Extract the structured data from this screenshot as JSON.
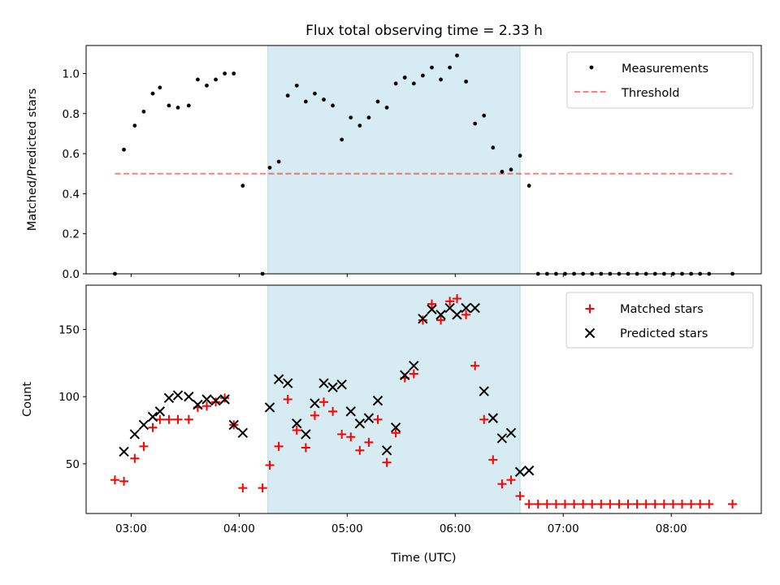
{
  "title": "Flux total observing time = 2.33 h",
  "colors": {
    "shade": "#add8e6",
    "threshold": "#ff0000",
    "matched": "#ff0000",
    "predicted": "#000000",
    "measurement": "#000000"
  },
  "chart_data": [
    {
      "type": "scatter",
      "ylabel": "Matched/Predicted stars",
      "ylim": [
        0,
        1.14
      ],
      "yticks": [
        "0.0",
        "0.2",
        "0.4",
        "0.6",
        "0.8",
        "1.0"
      ],
      "shaded_region": [
        "04:16",
        "06:36"
      ],
      "legend": {
        "placement": "top-right",
        "entries": [
          "Measurements",
          "Threshold"
        ]
      },
      "threshold": {
        "name": "Threshold",
        "value": 0.5,
        "x_range": [
          "02:51",
          "08:34"
        ],
        "style": "dashed"
      },
      "series": [
        {
          "name": "Measurements",
          "marker": "dot",
          "x": [
            "02:51",
            "02:56",
            "03:02",
            "03:07",
            "03:12",
            "03:16",
            "03:21",
            "03:26",
            "03:32",
            "03:37",
            "03:42",
            "03:47",
            "03:52",
            "03:57",
            "04:02",
            "04:13",
            "04:17",
            "04:22",
            "04:27",
            "04:32",
            "04:37",
            "04:42",
            "04:47",
            "04:52",
            "04:57",
            "05:02",
            "05:07",
            "05:12",
            "05:17",
            "05:22",
            "05:27",
            "05:32",
            "05:37",
            "05:42",
            "05:47",
            "05:52",
            "05:57",
            "06:01",
            "06:06",
            "06:11",
            "06:16",
            "06:21",
            "06:26",
            "06:31",
            "06:36",
            "06:41",
            "06:46",
            "06:51",
            "06:56",
            "07:01",
            "07:06",
            "07:11",
            "07:16",
            "07:21",
            "07:26",
            "07:31",
            "07:36",
            "07:41",
            "07:46",
            "07:51",
            "07:56",
            "08:01",
            "08:06",
            "08:11",
            "08:16",
            "08:21",
            "08:34"
          ],
          "y": [
            0.0,
            0.62,
            0.74,
            0.81,
            0.9,
            0.93,
            0.84,
            0.83,
            0.84,
            0.97,
            0.94,
            0.97,
            1.0,
            1.0,
            0.44,
            0.0,
            0.53,
            0.56,
            0.89,
            0.94,
            0.86,
            0.9,
            0.87,
            0.84,
            0.67,
            0.78,
            0.74,
            0.78,
            0.86,
            0.83,
            0.95,
            0.98,
            0.95,
            0.99,
            1.03,
            0.97,
            1.03,
            1.09,
            0.96,
            0.75,
            0.79,
            0.63,
            0.51,
            0.52,
            0.59,
            0.44,
            0.0,
            0.0,
            0.0,
            0.0,
            0.0,
            0.0,
            0.0,
            0.0,
            0.0,
            0.0,
            0.0,
            0.0,
            0.0,
            0.0,
            0.0,
            0.0,
            0.0,
            0.0,
            0.0,
            0.0,
            0.0
          ]
        }
      ]
    },
    {
      "type": "scatter",
      "xlabel": "Time (UTC)",
      "ylabel": "Count",
      "ylim": [
        13,
        183
      ],
      "yticks": [
        "50",
        "100",
        "150"
      ],
      "xticks": [
        "03:00",
        "04:00",
        "05:00",
        "06:00",
        "07:00",
        "08:00"
      ],
      "legend": {
        "placement": "top-right",
        "entries": [
          "Matched stars",
          "Predicted stars"
        ]
      },
      "series": [
        {
          "name": "Matched stars",
          "marker": "plus",
          "x": [
            "02:51",
            "02:56",
            "03:02",
            "03:07",
            "03:12",
            "03:16",
            "03:21",
            "03:26",
            "03:32",
            "03:37",
            "03:42",
            "03:47",
            "03:52",
            "03:57",
            "04:02",
            "04:13",
            "04:17",
            "04:22",
            "04:27",
            "04:32",
            "04:37",
            "04:42",
            "04:47",
            "04:52",
            "04:57",
            "05:02",
            "05:07",
            "05:12",
            "05:17",
            "05:22",
            "05:27",
            "05:32",
            "05:37",
            "05:42",
            "05:47",
            "05:52",
            "05:57",
            "06:01",
            "06:06",
            "06:11",
            "06:16",
            "06:21",
            "06:26",
            "06:31",
            "06:36",
            "06:41",
            "06:46",
            "06:51",
            "06:56",
            "07:01",
            "07:06",
            "07:11",
            "07:16",
            "07:21",
            "07:26",
            "07:31",
            "07:36",
            "07:41",
            "07:46",
            "07:51",
            "07:56",
            "08:01",
            "08:06",
            "08:11",
            "08:16",
            "08:21",
            "08:34"
          ],
          "y": [
            38,
            37,
            54,
            63,
            77,
            83,
            83,
            83,
            83,
            92,
            93,
            96,
            99,
            79,
            32,
            32,
            49,
            63,
            98,
            75,
            62,
            86,
            96,
            89,
            72,
            70,
            60,
            66,
            83,
            51,
            73,
            114,
            117,
            157,
            169,
            157,
            171,
            173,
            161,
            123,
            83,
            53,
            35,
            38,
            26,
            20,
            20,
            20,
            20,
            20,
            20,
            20,
            20,
            20,
            20,
            20,
            20,
            20,
            20,
            20,
            20,
            20,
            20,
            20,
            20,
            20,
            20
          ]
        },
        {
          "name": "Predicted stars",
          "marker": "x",
          "x": [
            "02:56",
            "03:02",
            "03:07",
            "03:12",
            "03:16",
            "03:21",
            "03:26",
            "03:32",
            "03:37",
            "03:42",
            "03:47",
            "03:52",
            "03:57",
            "04:02",
            "04:17",
            "04:22",
            "04:27",
            "04:32",
            "04:37",
            "04:42",
            "04:47",
            "04:52",
            "04:57",
            "05:02",
            "05:07",
            "05:12",
            "05:17",
            "05:22",
            "05:27",
            "05:32",
            "05:37",
            "05:42",
            "05:47",
            "05:52",
            "05:57",
            "06:01",
            "06:06",
            "06:11",
            "06:16",
            "06:21",
            "06:26",
            "06:31",
            "06:36",
            "06:41"
          ],
          "y": [
            59,
            72,
            79,
            85,
            89,
            99,
            101,
            100,
            94,
            98,
            97,
            98,
            79,
            73,
            92,
            113,
            110,
            80,
            72,
            95,
            110,
            107,
            109,
            89,
            80,
            84,
            97,
            60,
            77,
            116,
            123,
            158,
            165,
            161,
            166,
            161,
            166,
            166,
            104,
            84,
            69,
            73,
            44,
            45
          ]
        }
      ]
    }
  ]
}
